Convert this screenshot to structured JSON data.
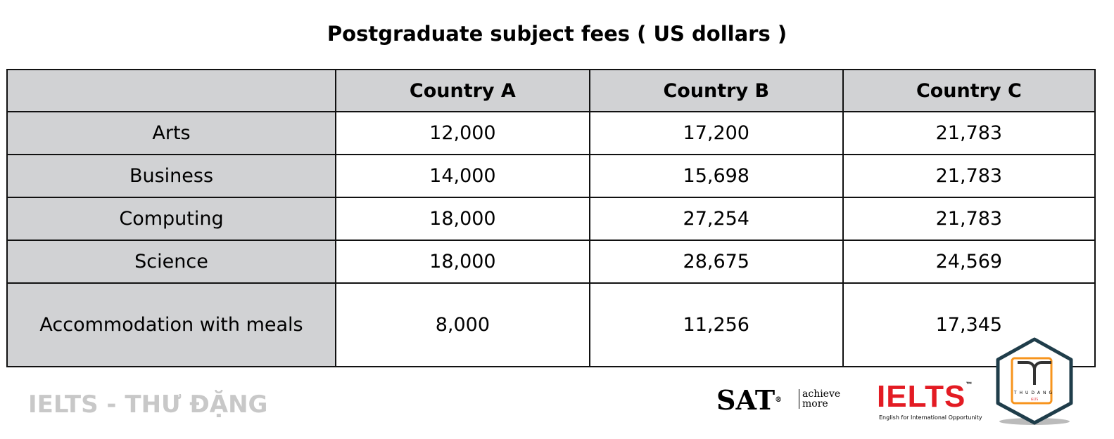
{
  "watermark": "IELTS - THƯ ĐẶNG",
  "chart_data": {
    "type": "table",
    "title": "Postgraduate subject fees ( US dollars )",
    "columns": [
      "",
      "Country A",
      "Country B",
      "Country C"
    ],
    "rows": [
      {
        "label": "Arts",
        "values": [
          "12,000",
          "17,200",
          "21,783"
        ]
      },
      {
        "label": "Business",
        "values": [
          "14,000",
          "15,698",
          "21,783"
        ]
      },
      {
        "label": "Computing",
        "values": [
          "18,000",
          "27,254",
          "21,783"
        ]
      },
      {
        "label": "Science",
        "values": [
          "18,000",
          "28,675",
          "24,569"
        ]
      },
      {
        "label": "Accommodation with meals",
        "values": [
          "8,000",
          "11,256",
          "17,345"
        ]
      }
    ]
  },
  "logos": {
    "sat": "SAT",
    "sat_mark": "®",
    "sat_tagline_1": "achieve",
    "sat_tagline_2": "more",
    "ielts": "IELTS",
    "ielts_tm": "™",
    "ielts_tagline": "English for International Opportunity",
    "thudang": "THUDANG",
    "thudang_sub": "IELTS"
  },
  "colors": {
    "header_bg": "#d1d2d4",
    "ielts_red": "#e31b23",
    "badge_border": "#1f3d4a",
    "badge_orange": "#f7941d"
  }
}
